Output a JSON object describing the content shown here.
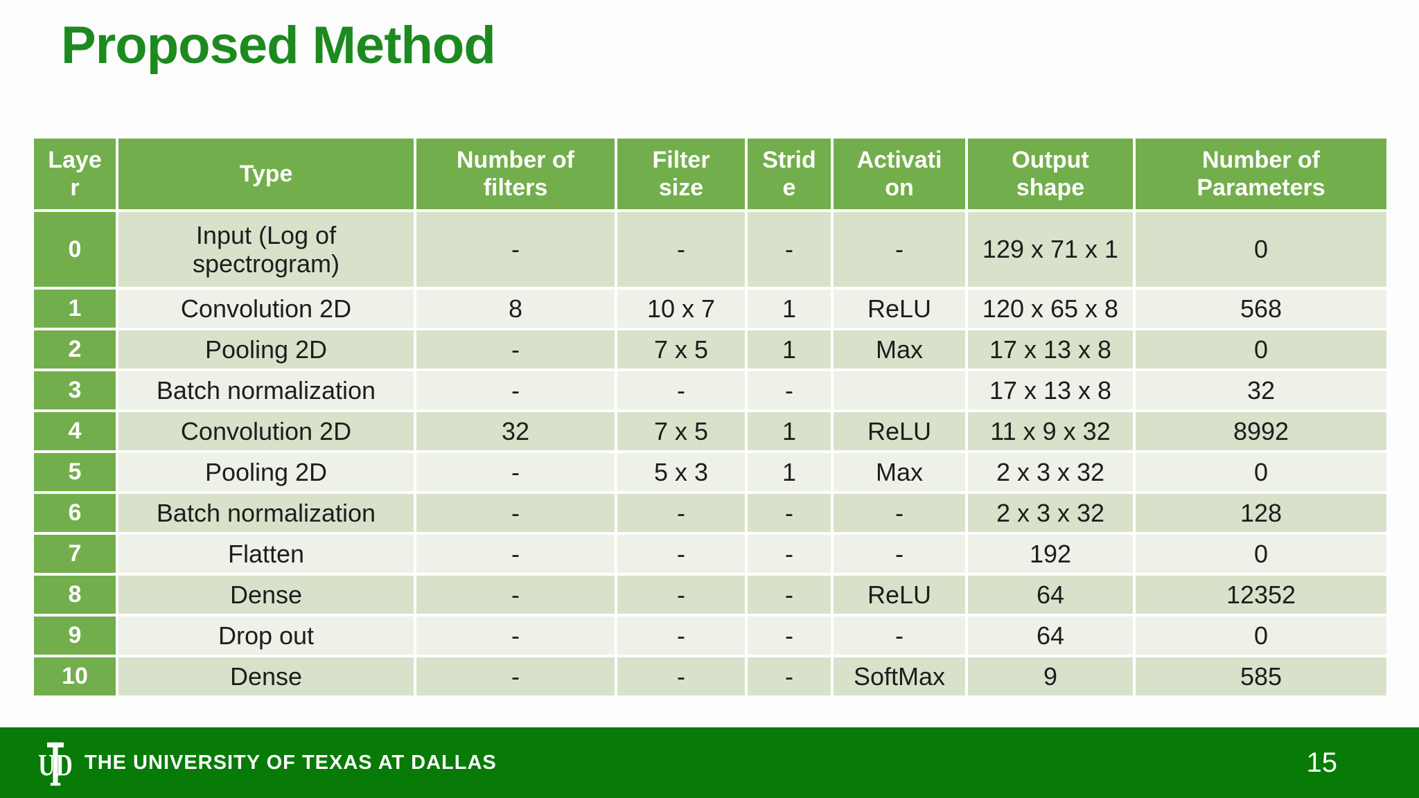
{
  "slide": {
    "title": "Proposed Method",
    "page_number": "15"
  },
  "footer": {
    "logo_monogram": "UTD",
    "org_name": "THE UNIVERSITY OF TEXAS AT DALLAS"
  },
  "colors": {
    "title_green": "#1d8a1f",
    "table_header_green": "#72ae4b",
    "row_band_dark": "#d8e2cb",
    "row_band_light": "#edf1e7",
    "footer_green": "#087a08",
    "cell_text": "#1d1d1d"
  },
  "table": {
    "columns": [
      {
        "key": "layer",
        "label": "Laye\nr"
      },
      {
        "key": "type",
        "label": "Type"
      },
      {
        "key": "filters",
        "label": "Number of\nfilters"
      },
      {
        "key": "filter_size",
        "label": "Filter\nsize"
      },
      {
        "key": "stride",
        "label": "Strid\ne"
      },
      {
        "key": "activation",
        "label": "Activati\non"
      },
      {
        "key": "output_shape",
        "label": "Output\nshape"
      },
      {
        "key": "parameters",
        "label": "Number of\nParameters"
      }
    ],
    "rows": [
      {
        "layer": "0",
        "type": "Input (Log of\nspectrogram)",
        "filters": "-",
        "filter_size": "-",
        "stride": "-",
        "activation": "-",
        "output_shape": "129 x 71 x 1",
        "parameters": "0"
      },
      {
        "layer": "1",
        "type": "Convolution 2D",
        "filters": "8",
        "filter_size": "10 x 7",
        "stride": "1",
        "activation": "ReLU",
        "output_shape": "120 x 65 x 8",
        "parameters": "568"
      },
      {
        "layer": "2",
        "type": "Pooling 2D",
        "filters": "-",
        "filter_size": "7 x 5",
        "stride": "1",
        "activation": "Max",
        "output_shape": "17 x 13 x 8",
        "parameters": "0"
      },
      {
        "layer": "3",
        "type": "Batch normalization",
        "filters": "-",
        "filter_size": "-",
        "stride": "-",
        "activation": "",
        "output_shape": "17 x 13 x 8",
        "parameters": "32"
      },
      {
        "layer": "4",
        "type": "Convolution 2D",
        "filters": "32",
        "filter_size": "7 x 5",
        "stride": "1",
        "activation": "ReLU",
        "output_shape": "11 x 9 x 32",
        "parameters": "8992"
      },
      {
        "layer": "5",
        "type": "Pooling 2D",
        "filters": "-",
        "filter_size": "5 x 3",
        "stride": "1",
        "activation": "Max",
        "output_shape": "2 x 3 x 32",
        "parameters": "0"
      },
      {
        "layer": "6",
        "type": "Batch normalization",
        "filters": "-",
        "filter_size": "-",
        "stride": "-",
        "activation": "-",
        "output_shape": "2 x 3 x 32",
        "parameters": "128"
      },
      {
        "layer": "7",
        "type": "Flatten",
        "filters": "-",
        "filter_size": "-",
        "stride": "-",
        "activation": "-",
        "output_shape": "192",
        "parameters": "0"
      },
      {
        "layer": "8",
        "type": "Dense",
        "filters": "-",
        "filter_size": "-",
        "stride": "-",
        "activation": "ReLU",
        "output_shape": "64",
        "parameters": "12352"
      },
      {
        "layer": "9",
        "type": "Drop out",
        "filters": "-",
        "filter_size": "-",
        "stride": "-",
        "activation": "-",
        "output_shape": "64",
        "parameters": "0"
      },
      {
        "layer": "10",
        "type": "Dense",
        "filters": "-",
        "filter_size": "-",
        "stride": "-",
        "activation": "SoftMax",
        "output_shape": "9",
        "parameters": "585"
      }
    ]
  }
}
